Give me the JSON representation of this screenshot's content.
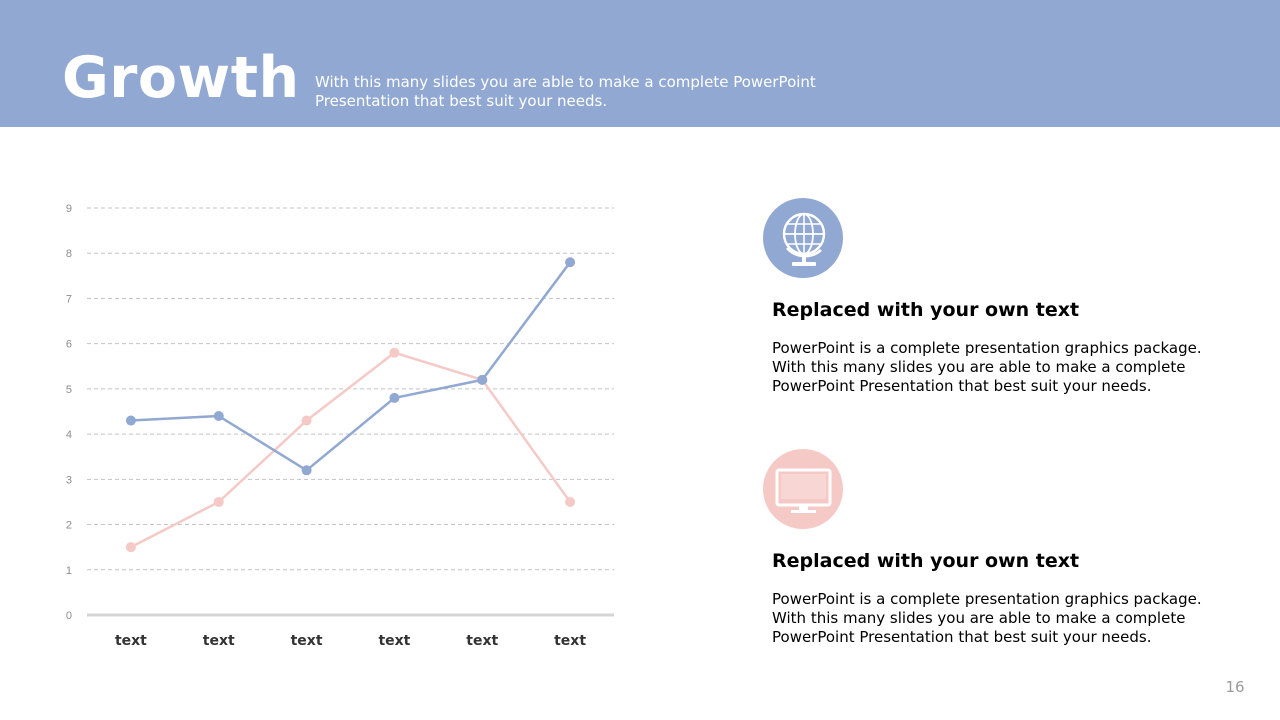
{
  "header": {
    "title": "Growth",
    "subtitle": "With this many slides you are able to make a complete PowerPoint Presentation that best suit your needs."
  },
  "features": [
    {
      "icon": "globe-icon",
      "title": "Replaced with your own text",
      "text": "PowerPoint is a complete presentation graphics package. With this many slides you are able to make a complete PowerPoint Presentation that best suit your needs."
    },
    {
      "icon": "monitor-icon",
      "title": "Replaced with your own text",
      "text": "PowerPoint is a complete presentation graphics package. With this many slides you are able to make a complete PowerPoint Presentation that best suit your needs."
    }
  ],
  "page_number": "16",
  "colors": {
    "header": "#91a8d2",
    "series_blue": "#91a8d2",
    "series_pink": "#f5c9c6"
  },
  "chart_data": {
    "type": "line",
    "categories": [
      "text",
      "text",
      "text",
      "text",
      "text",
      "text"
    ],
    "series": [
      {
        "values": [
          4.3,
          4.4,
          3.2,
          4.8,
          5.2,
          7.8
        ],
        "color": "#91a8d2"
      },
      {
        "values": [
          1.5,
          2.5,
          4.3,
          5.8,
          5.2,
          2.5
        ],
        "color": "#f5c9c6"
      }
    ],
    "yticks": [
      "0",
      "1",
      "2",
      "3",
      "4",
      "5",
      "6",
      "7",
      "8",
      "9"
    ],
    "ylim": [
      0,
      9
    ],
    "grid": true,
    "legend": "none"
  }
}
